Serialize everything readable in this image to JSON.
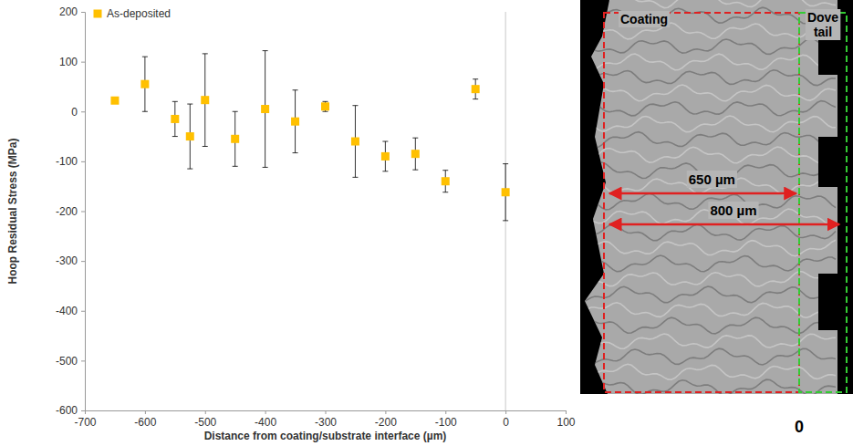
{
  "chart_data": {
    "type": "scatter",
    "x_label": "Distance from coating/substrate interface (µm)",
    "y_label": "Hoop Residual Stress (MPa)",
    "x": [
      -650,
      -600,
      -550,
      -525,
      -500,
      -450,
      -400,
      -350,
      -300,
      -250,
      -200,
      -150,
      -100,
      -50,
      0
    ],
    "series": [
      {
        "name": "As-deposited",
        "color": "#ffc000",
        "marker": "square",
        "values": [
          22,
          55,
          -15,
          -50,
          23,
          -55,
          5,
          -20,
          10,
          -60,
          -90,
          -85,
          -140,
          45,
          -162
        ],
        "errors": [
          null,
          55,
          35,
          65,
          93,
          55,
          117,
          63,
          10,
          72,
          30,
          32,
          22,
          20,
          57
        ]
      }
    ],
    "xlim": [
      -700,
      100
    ],
    "xticks": [
      -700,
      -600,
      -500,
      -400,
      -300,
      -200,
      -100,
      0,
      100
    ],
    "ylim": [
      -600,
      200
    ],
    "yticks": [
      -600,
      -500,
      -400,
      -300,
      -200,
      -100,
      0,
      100,
      200
    ],
    "grid": false,
    "legend": "upper left"
  },
  "micrograph": {
    "labels": [
      "Coating",
      "Dove tail"
    ],
    "dimensions": [
      {
        "value": 800,
        "label": "800 µm"
      },
      {
        "value": 650,
        "label": "650 µm"
      }
    ],
    "origin": 0
  }
}
